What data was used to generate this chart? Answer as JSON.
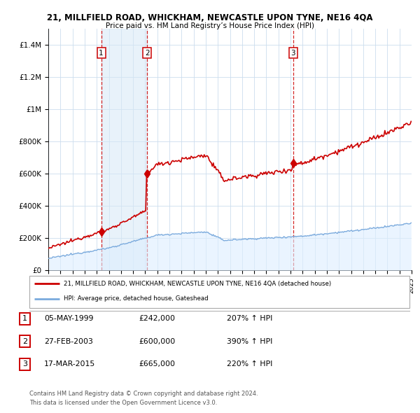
{
  "title": "21, MILLFIELD ROAD, WHICKHAM, NEWCASTLE UPON TYNE, NE16 4QA",
  "subtitle": "Price paid vs. HM Land Registry’s House Price Index (HPI)",
  "sale_label": "21, MILLFIELD ROAD, WHICKHAM, NEWCASTLE UPON TYNE, NE16 4QA (detached house)",
  "hpi_label": "HPI: Average price, detached house, Gateshead",
  "sale_color": "#cc0000",
  "hpi_color": "#7aaadd",
  "hpi_fill_color": "#ddeeff",
  "background_color": "#ffffff",
  "grid_color": "#ccddee",
  "sale_points": [
    {
      "t": 1999.37,
      "value": 242000,
      "label": "1"
    },
    {
      "t": 2003.16,
      "value": 600000,
      "label": "2"
    },
    {
      "t": 2015.21,
      "value": 665000,
      "label": "3"
    }
  ],
  "table_rows": [
    {
      "num": "1",
      "date": "05-MAY-1999",
      "price": "£242,000",
      "hpi": "207% ↑ HPI"
    },
    {
      "num": "2",
      "date": "27-FEB-2003",
      "price": "£600,000",
      "hpi": "390% ↑ HPI"
    },
    {
      "num": "3",
      "date": "17-MAR-2015",
      "price": "£665,000",
      "hpi": "220% ↑ HPI"
    }
  ],
  "footer1": "Contains HM Land Registry data © Crown copyright and database right 2024.",
  "footer2": "This data is licensed under the Open Government Licence v3.0.",
  "ylim": [
    0,
    1500000
  ],
  "yticks": [
    0,
    200000,
    400000,
    600000,
    800000,
    1000000,
    1200000,
    1400000
  ],
  "ytick_labels": [
    "£0",
    "£200K",
    "£400K",
    "£600K",
    "£800K",
    "£1M",
    "£1.2M",
    "£1.4M"
  ],
  "xmin": 1995,
  "xmax": 2025
}
